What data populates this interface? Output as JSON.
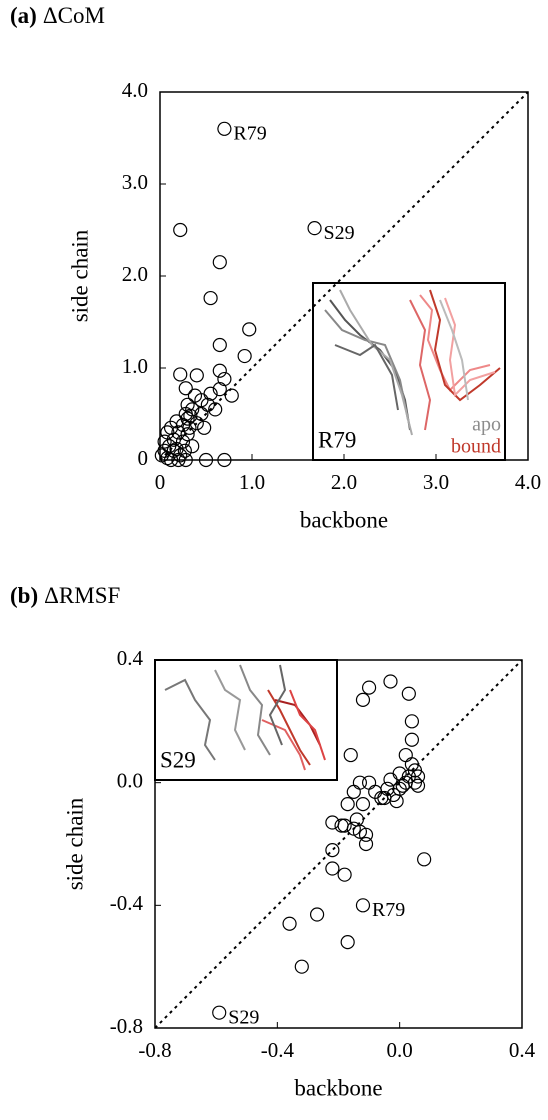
{
  "chart_data": [
    {
      "type": "scatter",
      "label": "(a)",
      "title": "ΔCoM",
      "x_label": "backbone",
      "y_label": "side chain",
      "xlim": [
        0,
        4
      ],
      "ylim": [
        0,
        4
      ],
      "xticks": [
        0,
        {
          "value": 1,
          "label": "1.0"
        },
        {
          "value": 2,
          "label": "2.0"
        },
        {
          "value": 3,
          "label": "3.0"
        },
        {
          "value": 4,
          "label": "4.0"
        }
      ],
      "yticks": [
        0,
        {
          "value": 1,
          "label": "1.0"
        },
        {
          "value": 2,
          "label": "2.0"
        },
        {
          "value": 3,
          "label": "3.0"
        },
        {
          "value": 4,
          "label": "4.0"
        }
      ],
      "diagonal": true,
      "color": "#000000",
      "x": [
        0.7,
        1.68,
        0.22,
        0.65,
        0.55,
        0.65,
        0.97,
        0.92,
        0.65,
        0.7,
        0.65,
        0.78,
        0.22,
        0.28,
        0.55,
        0.45,
        0.4,
        0.35,
        0.3,
        0.25,
        0.2,
        0.15,
        0.1,
        0.05,
        0.02,
        0.08,
        0.12,
        0.2,
        0.28,
        0.5,
        0.7,
        0.3,
        0.38,
        0.28,
        0.32,
        0.18,
        0.25,
        0.4,
        0.45,
        0.52,
        0.3,
        0.22,
        0.05,
        0.15,
        0.35,
        0.27,
        0.12,
        0.08,
        0.18,
        0.6,
        0.48,
        0.33
      ],
      "y": [
        3.6,
        2.52,
        2.5,
        2.15,
        1.76,
        1.25,
        1.42,
        1.13,
        0.97,
        0.88,
        0.77,
        0.7,
        0.93,
        0.78,
        0.72,
        0.65,
        0.92,
        0.55,
        0.45,
        0.38,
        0.3,
        0.22,
        0.15,
        0.1,
        0.05,
        0.02,
        0.0,
        0.0,
        0.0,
        0.0,
        0.0,
        0.6,
        0.7,
        0.5,
        0.35,
        0.12,
        0.2,
        0.4,
        0.5,
        0.6,
        0.28,
        0.05,
        0.2,
        0.1,
        0.15,
        0.1,
        0.35,
        0.3,
        0.42,
        0.55,
        0.35,
        0.48
      ],
      "point_labels": [
        "R79",
        "S29",
        null,
        null,
        null,
        null,
        null,
        null,
        null,
        null,
        null,
        null,
        null,
        null,
        null,
        null,
        null,
        null,
        null,
        null,
        null,
        null,
        null,
        null,
        null,
        null,
        null,
        null,
        null,
        null,
        null,
        null,
        null,
        null,
        null,
        null,
        null,
        null,
        null,
        null,
        null,
        null,
        null,
        null,
        null,
        null,
        null,
        null,
        null,
        null,
        null,
        null
      ],
      "inset": {
        "label": "R79",
        "legend": [
          {
            "name": "apo",
            "color": "#8c8c8c"
          },
          {
            "name": "bound",
            "color": "#c0392b"
          }
        ]
      }
    },
    {
      "type": "scatter",
      "label": "(b)",
      "title": "ΔRMSF",
      "x_label": "backbone",
      "y_label": "side chain",
      "xlim": [
        -0.8,
        0.4
      ],
      "ylim": [
        -0.8,
        0.4
      ],
      "xticks": [
        -0.8,
        -0.4,
        {
          "value": 0,
          "label": "0.0"
        },
        0.4
      ],
      "yticks": [
        -0.8,
        -0.4,
        {
          "value": 0,
          "label": "0.0"
        },
        0.4
      ],
      "diagonal": true,
      "color": "#000000",
      "x": [
        -0.59,
        -0.12,
        -0.03,
        -0.1,
        -0.12,
        0.03,
        0.04,
        0.04,
        -0.16,
        0.02,
        0.06,
        0.05,
        0.04,
        0.03,
        0.02,
        0.0,
        -0.02,
        -0.05,
        -0.08,
        -0.1,
        -0.13,
        -0.15,
        -0.17,
        -0.12,
        -0.03,
        0.01,
        -0.04,
        0.06,
        0.05,
        -0.19,
        -0.18,
        -0.15,
        -0.22,
        -0.13,
        -0.11,
        -0.11,
        -0.14,
        -0.22,
        -0.22,
        -0.18,
        -0.27,
        -0.36,
        -0.17,
        -0.32,
        0.08,
        -0.06,
        0.0,
        -0.01
      ],
      "y": [
        -0.75,
        -0.4,
        0.33,
        0.31,
        0.27,
        0.29,
        0.2,
        0.14,
        0.09,
        0.09,
        0.02,
        0.04,
        0.06,
        0.02,
        0.0,
        -0.02,
        -0.04,
        -0.05,
        -0.03,
        0.0,
        0.0,
        -0.03,
        -0.07,
        -0.07,
        0.01,
        -0.01,
        -0.02,
        -0.01,
        0.0,
        -0.14,
        -0.14,
        -0.15,
        -0.13,
        -0.16,
        -0.17,
        -0.2,
        -0.12,
        -0.22,
        -0.28,
        -0.3,
        -0.43,
        -0.46,
        -0.52,
        -0.6,
        -0.25,
        -0.05,
        0.03,
        -0.06
      ],
      "point_labels": [
        "S29",
        "R79",
        null,
        null,
        null,
        null,
        null,
        null,
        null,
        null,
        null,
        null,
        null,
        null,
        null,
        null,
        null,
        null,
        null,
        null,
        null,
        null,
        null,
        null,
        null,
        null,
        null,
        null,
        null,
        null,
        null,
        null,
        null,
        null,
        null,
        null,
        null,
        null,
        null,
        null,
        null,
        null,
        null,
        null,
        null,
        null,
        null,
        null
      ],
      "inset": {
        "label": "S29"
      }
    }
  ]
}
